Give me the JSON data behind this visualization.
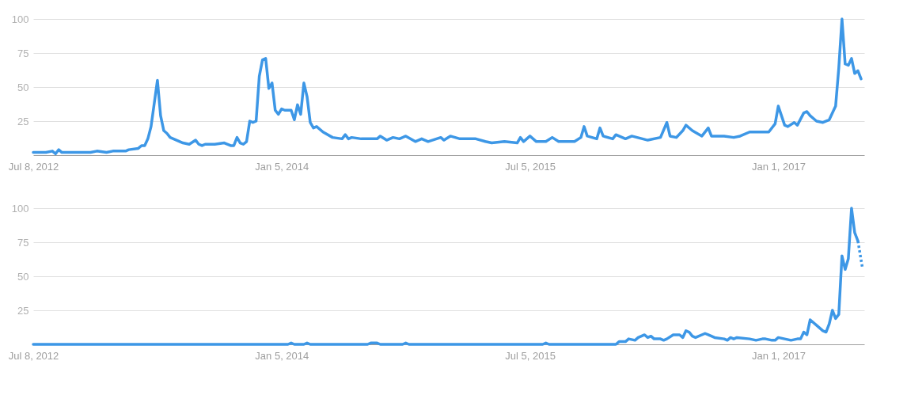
{
  "chart_data": [
    {
      "type": "line",
      "grid": "y",
      "line_style": "solid",
      "marker": "none",
      "xlim": [
        "2012-07-08",
        "2017-07-09"
      ],
      "xticks": [
        {
          "value": "2012-07-08",
          "label": "Jul 8, 2012"
        },
        {
          "value": "2014-01-05",
          "label": "Jan 5, 2014"
        },
        {
          "value": "2015-07-05",
          "label": "Jul 5, 2015"
        },
        {
          "value": "2017-01-01",
          "label": "Jan 1, 2017"
        }
      ],
      "ylim": [
        0,
        100
      ],
      "yticks": [
        25,
        50,
        75,
        100
      ],
      "x": [
        "2012-07-08",
        "2012-08-05",
        "2012-08-19",
        "2012-08-26",
        "2012-09-02",
        "2012-09-09",
        "2012-11-11",
        "2012-11-25",
        "2012-12-16",
        "2012-12-30",
        "2013-01-27",
        "2013-02-03",
        "2013-02-24",
        "2013-03-03",
        "2013-03-10",
        "2013-03-17",
        "2013-03-24",
        "2013-04-07",
        "2013-04-14",
        "2013-04-21",
        "2013-04-28",
        "2013-05-05",
        "2013-05-12",
        "2013-06-02",
        "2013-06-16",
        "2013-06-30",
        "2013-07-07",
        "2013-07-14",
        "2013-07-21",
        "2013-08-11",
        "2013-09-01",
        "2013-09-15",
        "2013-09-22",
        "2013-09-29",
        "2013-10-06",
        "2013-10-13",
        "2013-10-20",
        "2013-10-27",
        "2013-11-03",
        "2013-11-10",
        "2013-11-17",
        "2013-11-24",
        "2013-12-01",
        "2013-12-08",
        "2013-12-15",
        "2013-12-22",
        "2013-12-29",
        "2014-01-05",
        "2014-01-12",
        "2014-01-26",
        "2014-02-02",
        "2014-02-09",
        "2014-02-16",
        "2014-02-23",
        "2014-03-02",
        "2014-03-09",
        "2014-03-16",
        "2014-03-23",
        "2014-04-06",
        "2014-04-27",
        "2014-05-18",
        "2014-05-25",
        "2014-06-01",
        "2014-06-08",
        "2014-06-29",
        "2014-08-03",
        "2014-08-10",
        "2014-08-24",
        "2014-09-07",
        "2014-09-21",
        "2014-10-05",
        "2014-10-26",
        "2014-11-09",
        "2014-11-23",
        "2014-12-21",
        "2014-12-28",
        "2015-01-11",
        "2015-02-01",
        "2015-03-08",
        "2015-03-29",
        "2015-04-12",
        "2015-05-10",
        "2015-06-07",
        "2015-06-14",
        "2015-06-21",
        "2015-07-05",
        "2015-07-19",
        "2015-08-09",
        "2015-08-23",
        "2015-09-06",
        "2015-10-11",
        "2015-10-25",
        "2015-11-01",
        "2015-11-08",
        "2015-11-29",
        "2015-12-06",
        "2015-12-13",
        "2016-01-03",
        "2016-01-10",
        "2016-01-31",
        "2016-02-14",
        "2016-03-20",
        "2016-04-17",
        "2016-05-01",
        "2016-05-08",
        "2016-05-22",
        "2016-06-05",
        "2016-06-12",
        "2016-06-26",
        "2016-07-17",
        "2016-07-31",
        "2016-08-07",
        "2016-09-04",
        "2016-09-25",
        "2016-10-09",
        "2016-10-30",
        "2016-12-11",
        "2016-12-25",
        "2017-01-01",
        "2017-01-15",
        "2017-01-22",
        "2017-02-05",
        "2017-02-12",
        "2017-02-26",
        "2017-03-05",
        "2017-03-12",
        "2017-03-26",
        "2017-04-09",
        "2017-04-23",
        "2017-05-07",
        "2017-05-14",
        "2017-05-21",
        "2017-05-28",
        "2017-06-04",
        "2017-06-11",
        "2017-06-18",
        "2017-06-25",
        "2017-07-02"
      ],
      "series": [
        {
          "color": "#3d97e6",
          "values": [
            2,
            2,
            3,
            1,
            4,
            2,
            2,
            3,
            2,
            3,
            3,
            4,
            5,
            7,
            7,
            12,
            21,
            55,
            29,
            18,
            16,
            13,
            12,
            9,
            8,
            11,
            8,
            7,
            8,
            8,
            9,
            7,
            7,
            13,
            9,
            8,
            10,
            25,
            24,
            25,
            58,
            70,
            71,
            49,
            53,
            33,
            30,
            34,
            33,
            33,
            26,
            37,
            30,
            53,
            43,
            24,
            20,
            21,
            17,
            13,
            12,
            15,
            12,
            13,
            12,
            12,
            14,
            11,
            13,
            12,
            14,
            10,
            12,
            10,
            13,
            11,
            14,
            12,
            12,
            10,
            9,
            10,
            9,
            13,
            10,
            14,
            10,
            10,
            13,
            10,
            10,
            13,
            21,
            14,
            12,
            20,
            14,
            12,
            15,
            12,
            14,
            11,
            13,
            24,
            14,
            13,
            18,
            22,
            18,
            14,
            20,
            14,
            14,
            13,
            14,
            17,
            17,
            23,
            36,
            22,
            21,
            24,
            22,
            31,
            32,
            29,
            25,
            24,
            26,
            36,
            64,
            100,
            67,
            66,
            71,
            60,
            62,
            56
          ]
        }
      ]
    },
    {
      "type": "line",
      "grid": "y",
      "line_style": "solid",
      "marker": "none",
      "xlim": [
        "2012-07-08",
        "2017-07-09"
      ],
      "xticks": [
        {
          "value": "2012-07-08",
          "label": "Jul 8, 2012"
        },
        {
          "value": "2014-01-05",
          "label": "Jan 5, 2014"
        },
        {
          "value": "2015-07-05",
          "label": "Jul 5, 2015"
        },
        {
          "value": "2017-01-01",
          "label": "Jan 1, 2017"
        }
      ],
      "ylim": [
        0,
        100
      ],
      "yticks": [
        25,
        50,
        75,
        100
      ],
      "x": [
        "2012-07-08",
        "2014-01-19",
        "2014-01-26",
        "2014-02-02",
        "2014-02-23",
        "2014-03-02",
        "2014-03-09",
        "2014-07-13",
        "2014-07-20",
        "2014-08-03",
        "2014-08-10",
        "2014-09-28",
        "2014-10-05",
        "2014-10-12",
        "2015-08-02",
        "2015-08-09",
        "2015-08-16",
        "2016-01-10",
        "2016-01-17",
        "2016-01-31",
        "2016-02-07",
        "2016-02-21",
        "2016-02-28",
        "2016-03-13",
        "2016-03-20",
        "2016-03-27",
        "2016-04-03",
        "2016-04-17",
        "2016-04-24",
        "2016-05-01",
        "2016-05-15",
        "2016-05-29",
        "2016-06-05",
        "2016-06-12",
        "2016-06-19",
        "2016-06-26",
        "2016-07-03",
        "2016-07-24",
        "2016-07-31",
        "2016-08-14",
        "2016-09-04",
        "2016-09-11",
        "2016-09-18",
        "2016-09-25",
        "2016-10-02",
        "2016-10-30",
        "2016-11-13",
        "2016-11-27",
        "2016-12-04",
        "2016-12-18",
        "2016-12-25",
        "2017-01-01",
        "2017-01-15",
        "2017-01-29",
        "2017-02-12",
        "2017-02-19",
        "2017-02-26",
        "2017-03-05",
        "2017-03-12",
        "2017-03-26",
        "2017-04-09",
        "2017-04-16",
        "2017-04-23",
        "2017-04-30",
        "2017-05-07",
        "2017-05-14",
        "2017-05-21",
        "2017-05-28",
        "2017-06-04",
        "2017-06-11",
        "2017-06-18",
        "2017-06-25"
      ],
      "series": [
        {
          "color": "#3d97e6",
          "values": [
            0,
            0,
            1,
            0,
            0,
            1,
            0,
            0,
            1,
            1,
            0,
            0,
            1,
            0,
            0,
            1,
            0,
            0,
            2,
            2,
            4,
            3,
            5,
            7,
            5,
            6,
            4,
            4,
            3,
            4,
            7,
            7,
            5,
            10,
            9,
            6,
            5,
            8,
            7,
            5,
            4,
            3,
            5,
            4,
            5,
            4,
            3,
            4,
            4,
            3,
            3,
            5,
            4,
            3,
            4,
            4,
            9,
            7,
            18,
            14,
            10,
            9,
            15,
            25,
            19,
            22,
            65,
            55,
            63,
            100,
            82,
            76
          ]
        },
        {
          "color": "#3d97e6",
          "line_style": "dotted",
          "x": [
            "2017-06-25",
            "2017-07-05"
          ],
          "values": [
            76,
            56
          ]
        }
      ]
    }
  ]
}
